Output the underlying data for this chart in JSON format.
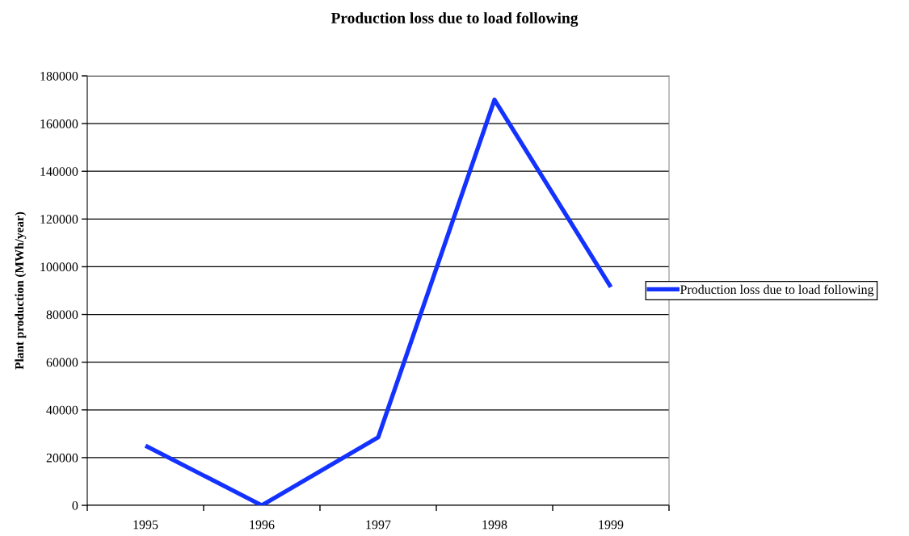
{
  "chart_data": {
    "type": "line",
    "title": "Production loss due to load following",
    "ylabel": "Plant production (MWh/year)",
    "categories": [
      "1995",
      "1996",
      "1997",
      "1998",
      "1999"
    ],
    "series": [
      {
        "name": "Production loss due to load following",
        "color": "#1432ff",
        "values": [
          25000,
          0,
          28500,
          170000,
          91500
        ]
      }
    ],
    "ylim": [
      0,
      180000
    ],
    "yticks": [
      0,
      20000,
      40000,
      60000,
      80000,
      100000,
      120000,
      140000,
      160000,
      180000
    ],
    "grid": "y",
    "legend": "right",
    "marker": "none",
    "line_style": "solid"
  }
}
